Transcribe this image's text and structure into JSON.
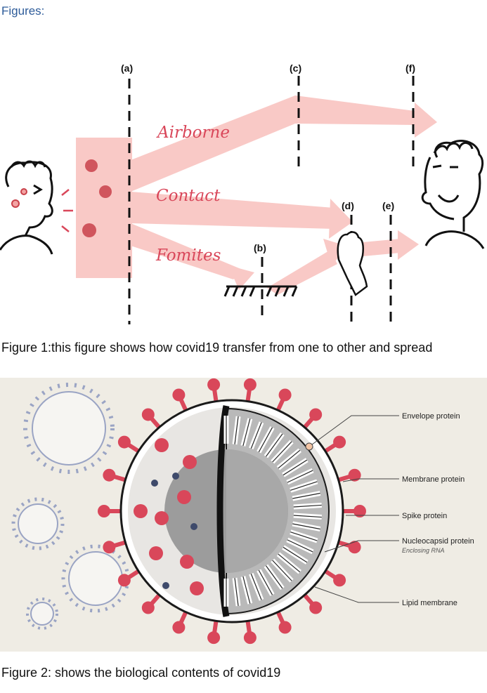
{
  "heading": "Figures:",
  "figure1": {
    "caption": "Figure 1:this figure shows how covid19 transfer from one to other and spread",
    "routes": {
      "airborne": "Airborne",
      "contact": "Contact",
      "fomites": "Fomites"
    },
    "markers": {
      "a": "(a)",
      "b": "(b)",
      "c": "(c)",
      "d": "(d)",
      "e": "(e)",
      "f": "(f)"
    },
    "colors": {
      "flow": "#f9c9c6",
      "route_text": "#d9475a",
      "virus": "#c9414a"
    }
  },
  "figure2": {
    "caption": "Figure 2: shows the biological contents of covid19",
    "labels": {
      "envelope": "Envelope protein",
      "membrane": "Membrane protein",
      "spike": "Spike protein",
      "nucleocapsid": "Nucleocapsid protein",
      "nucleocapsid_sub": "Enclosing RNA",
      "lipid": "Lipid membrane"
    },
    "colors": {
      "background": "#efece4",
      "spike": "#d9475a",
      "outline": "#1a1a1a",
      "faded_virus": "#9aa4c4"
    }
  }
}
